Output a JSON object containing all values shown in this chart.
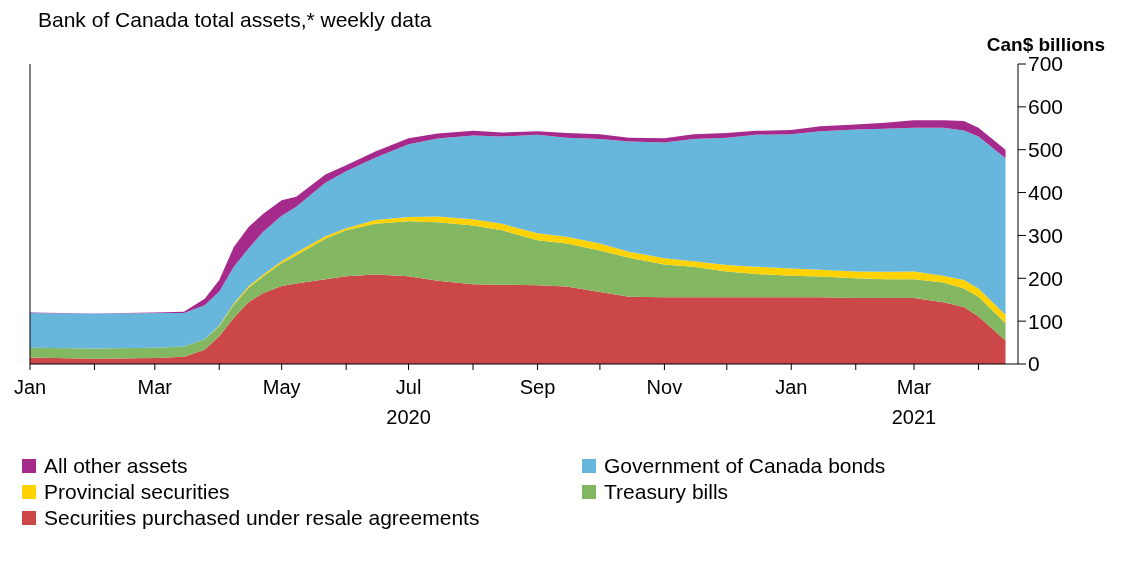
{
  "chart_data": {
    "type": "area",
    "title": "Bank of Canada total assets,* weekly data",
    "ylabel": "Can$ billions",
    "stacked": true,
    "grid": false,
    "legend": "bottom",
    "x": [
      "2020-01-01",
      "2020-02-01",
      "2020-03-01",
      "2020-03-15",
      "2020-03-25",
      "2020-04-01",
      "2020-04-08",
      "2020-04-15",
      "2020-04-22",
      "2020-05-01",
      "2020-05-08",
      "2020-05-22",
      "2020-06-01",
      "2020-06-15",
      "2020-07-01",
      "2020-07-15",
      "2020-08-01",
      "2020-08-15",
      "2020-09-01",
      "2020-09-15",
      "2020-10-01",
      "2020-10-15",
      "2020-11-01",
      "2020-11-15",
      "2020-12-01",
      "2020-12-15",
      "2021-01-01",
      "2021-01-15",
      "2021-02-01",
      "2021-02-15",
      "2021-03-01",
      "2021-03-15",
      "2021-03-25",
      "2021-04-01",
      "2021-04-14"
    ],
    "xlim": [
      "2020-01-01",
      "2021-04-20"
    ],
    "xticks": [
      {
        "value": "2020-01-01",
        "label": "Jan"
      },
      {
        "value": "2020-02-01",
        "label": null
      },
      {
        "value": "2020-03-01",
        "label": "Mar"
      },
      {
        "value": "2020-04-01",
        "label": null
      },
      {
        "value": "2020-05-01",
        "label": "May"
      },
      {
        "value": "2020-06-01",
        "label": null
      },
      {
        "value": "2020-07-01",
        "label": "Jul\n2020"
      },
      {
        "value": "2020-08-01",
        "label": null
      },
      {
        "value": "2020-09-01",
        "label": "Sep"
      },
      {
        "value": "2020-10-01",
        "label": null
      },
      {
        "value": "2020-11-01",
        "label": "Nov"
      },
      {
        "value": "2020-12-01",
        "label": null
      },
      {
        "value": "2021-01-01",
        "label": "Jan"
      },
      {
        "value": "2021-02-01",
        "label": null
      },
      {
        "value": "2021-03-01",
        "label": "Mar\n2021"
      },
      {
        "value": "2021-04-01",
        "label": null
      }
    ],
    "ylim": [
      0,
      700
    ],
    "yticks": [
      0,
      100,
      200,
      300,
      400,
      500,
      600,
      700
    ],
    "series": [
      {
        "name": "Securities purchased under resale agreements",
        "color": "#cc4748",
        "values": [
          15,
          12,
          14,
          17,
          33,
          65,
          108,
          144,
          165,
          182,
          188,
          198,
          205,
          209,
          205,
          194,
          186,
          185,
          184,
          181,
          168,
          157,
          156,
          156,
          156,
          156,
          156,
          156,
          154,
          154,
          154,
          144,
          133,
          111,
          55
        ]
      },
      {
        "name": "Treasury bills",
        "color": "#84b761",
        "values": [
          23,
          24,
          24,
          24,
          25,
          23,
          30,
          33,
          39,
          53,
          66,
          94,
          107,
          118,
          128,
          137,
          137,
          127,
          105,
          100,
          97,
          91,
          76,
          71,
          60,
          54,
          50,
          48,
          46,
          44,
          44,
          46,
          43,
          46,
          40
        ]
      },
      {
        "name": "Provincial securities",
        "color": "#ffd200",
        "values": [
          0,
          0,
          0,
          0,
          0,
          2,
          3,
          4,
          4,
          5,
          6,
          6,
          5,
          9,
          10,
          13,
          15,
          15,
          16,
          16,
          16,
          14,
          15,
          13,
          15,
          17,
          17,
          16,
          16,
          17,
          18,
          16,
          20,
          19,
          20
        ]
      },
      {
        "name": "Government of Canada bonds",
        "color": "#67b6dc",
        "values": [
          81,
          81,
          81,
          78,
          79,
          79,
          86,
          88,
          100,
          106,
          107,
          125,
          133,
          145,
          170,
          182,
          195,
          204,
          230,
          231,
          244,
          257,
          270,
          285,
          297,
          308,
          313,
          323,
          331,
          334,
          335,
          345,
          349,
          355,
          365
        ]
      },
      {
        "name": "All other assets",
        "color": "#a62a8c",
        "values": [
          1,
          1,
          1,
          3,
          15,
          27,
          46,
          50,
          42,
          36,
          23,
          19,
          14,
          15,
          14,
          12,
          11,
          9,
          8,
          11,
          11,
          9,
          10,
          11,
          11,
          9,
          10,
          12,
          12,
          14,
          18,
          18,
          22,
          20,
          20
        ]
      }
    ]
  }
}
